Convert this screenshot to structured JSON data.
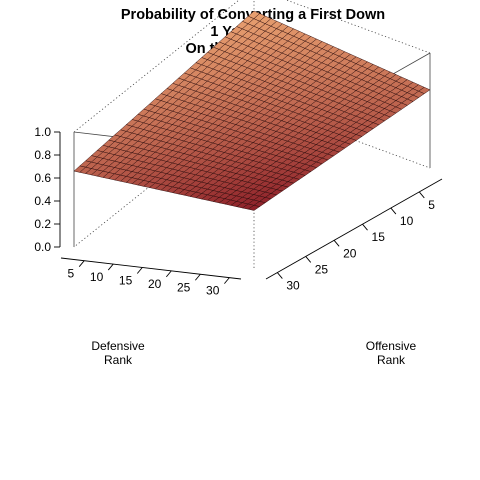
{
  "chart_data": {
    "type": "surface",
    "title": [
      "Probability of Converting a First Down",
      "1 Yard to Go",
      "On the 50 Yard Line"
    ],
    "x_axis": {
      "label": [
        "Offensive",
        "Rank"
      ],
      "ticks": [
        5,
        10,
        15,
        20,
        25,
        30
      ],
      "range": [
        1,
        32
      ]
    },
    "y_axis": {
      "label": [
        "Defensive",
        "Rank"
      ],
      "ticks": [
        5,
        10,
        15,
        20,
        25,
        30
      ],
      "range": [
        1,
        32
      ]
    },
    "z_axis": {
      "ticks": [
        "0.0",
        "0.2",
        "0.4",
        "0.6",
        "0.8",
        "1.0"
      ],
      "range": [
        0,
        1
      ]
    },
    "corners": [
      {
        "offensive_rank": 1,
        "defensive_rank": 1,
        "probability": 0.8
      },
      {
        "offensive_rank": 32,
        "defensive_rank": 1,
        "probability": 0.66
      },
      {
        "offensive_rank": 1,
        "defensive_rank": 32,
        "probability": 0.68
      },
      {
        "offensive_rank": 32,
        "defensive_rank": 32,
        "probability": 0.5
      }
    ],
    "grid_size": 32,
    "colors": {
      "high": "#e8a070",
      "low": "#8c1f28",
      "mesh": "#2a0a0a",
      "box": "#333333"
    }
  }
}
